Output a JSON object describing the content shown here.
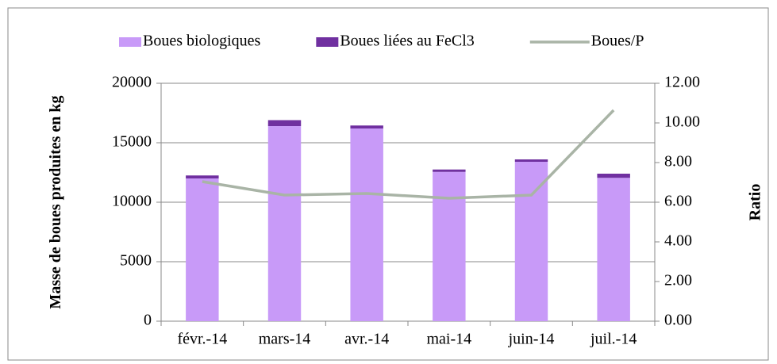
{
  "chart_data": {
    "type": "bar_line",
    "categories": [
      "févr.-14",
      "mars-14",
      "avr.-14",
      "mai-14",
      "juin-14",
      "juil.-14"
    ],
    "series": [
      {
        "name": "Boues biologiques",
        "color": "#c89af8",
        "type": "bar",
        "values": [
          12000,
          16400,
          16200,
          12550,
          13400,
          12050
        ]
      },
      {
        "name": "Boues liées au FeCl3",
        "color": "#7030a0",
        "type": "bar",
        "values": [
          250,
          500,
          250,
          200,
          200,
          350
        ]
      },
      {
        "name": "Boues/P",
        "color": "#a9b4a6",
        "type": "line",
        "axis": "y2",
        "values": [
          7.04,
          6.36,
          6.44,
          6.2,
          6.36,
          10.64
        ]
      }
    ],
    "ylabel": "Masse de boues produites en kg",
    "y2label": "Ratio",
    "ylim": [
      0,
      20000
    ],
    "yticks": [
      0,
      5000,
      10000,
      15000,
      20000
    ],
    "y2lim": [
      0,
      12
    ],
    "y2ticks": [
      {
        "value": 0,
        "label": "0.00"
      },
      {
        "value": 2,
        "label": "2.00"
      },
      {
        "value": 4,
        "label": "4.00"
      },
      {
        "value": 6,
        "label": "6.00"
      },
      {
        "value": 8,
        "label": "8.00"
      },
      {
        "value": 10,
        "label": "10.00"
      },
      {
        "value": 12,
        "label": "12.00"
      }
    ],
    "grid": true,
    "legend": "top"
  }
}
